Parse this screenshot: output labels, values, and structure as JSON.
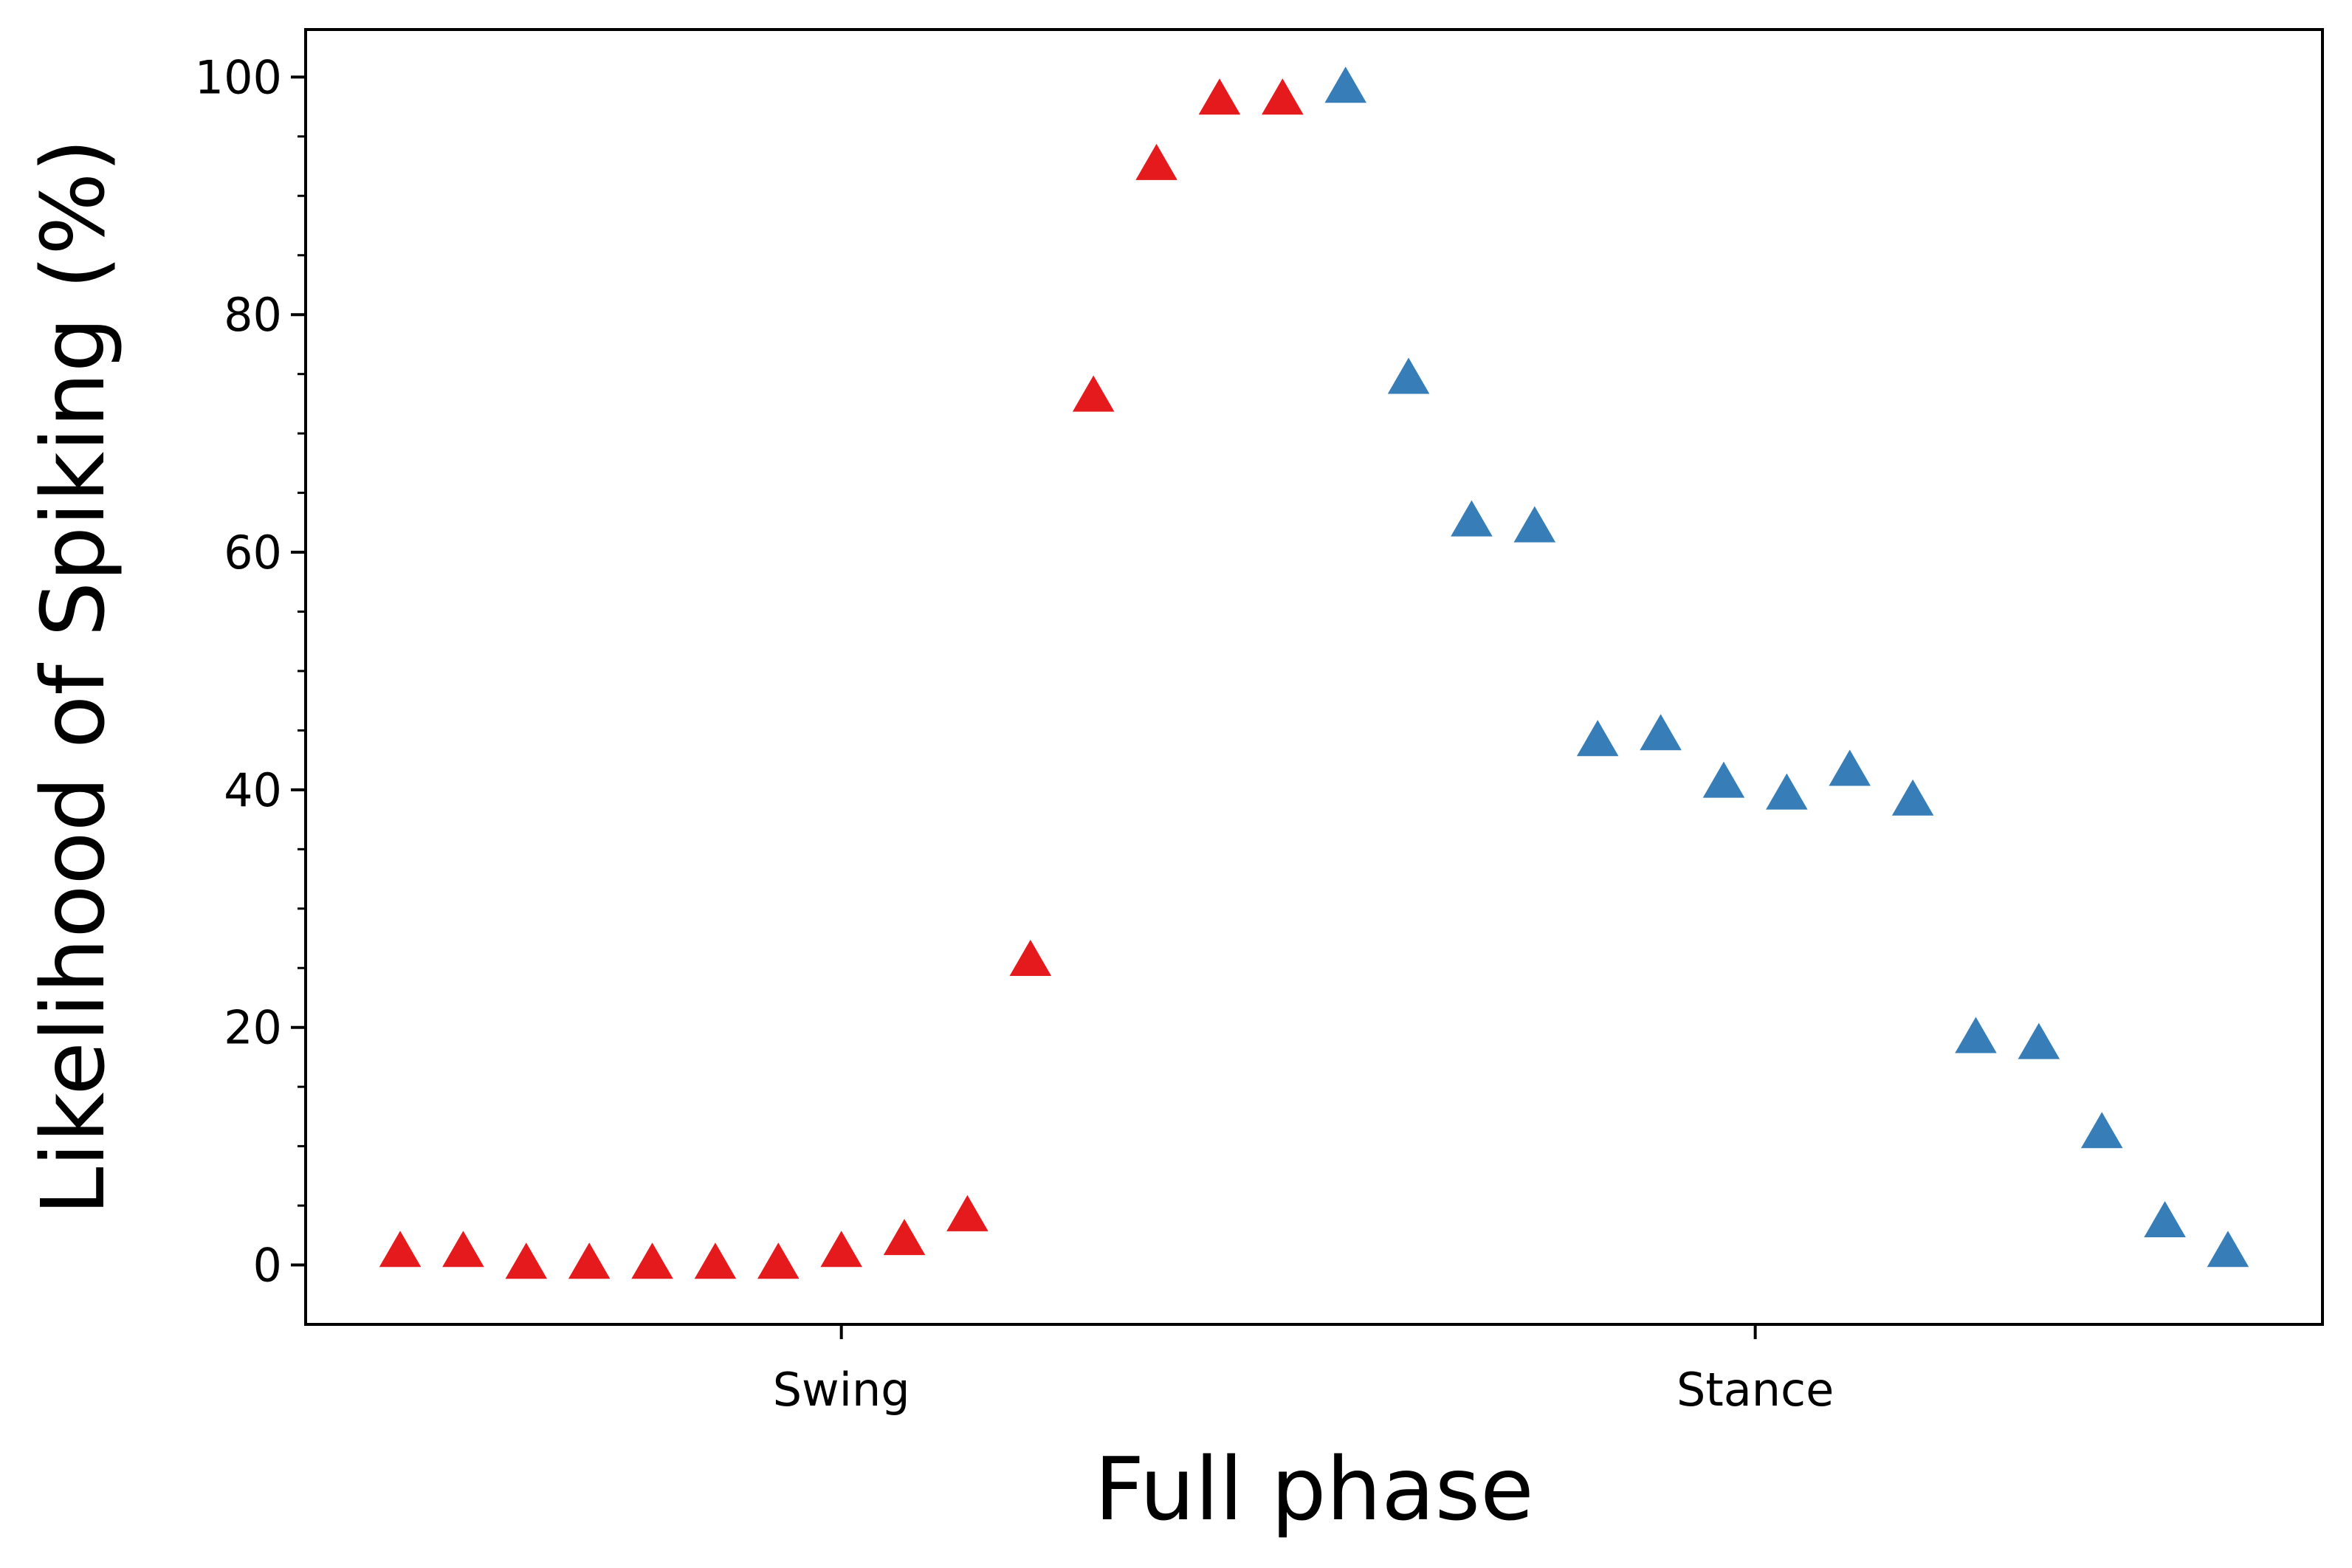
{
  "chart_data": {
    "type": "scatter",
    "xlabel": "Full phase",
    "ylabel": "Likelihood of Spiking (%)",
    "x_categories": [
      "Swing",
      "Stance"
    ],
    "ylim": [
      -5,
      104
    ],
    "y_ticks": [
      0,
      20,
      40,
      60,
      80,
      100
    ],
    "y_minor_step": 5,
    "grid": false,
    "marker": "triangle-up",
    "series": [
      {
        "color": "#e41a1c",
        "x": [
          1,
          2,
          3,
          4,
          5,
          6,
          7,
          8,
          9,
          10,
          11,
          12,
          13,
          14,
          15
        ],
        "values": [
          1,
          1,
          0,
          0,
          0,
          0,
          0,
          1,
          2,
          4,
          25.5,
          73,
          92.5,
          98,
          98
        ]
      },
      {
        "color": "#377eb8",
        "x": [
          16,
          17,
          18,
          19,
          20,
          21,
          22,
          23,
          24,
          25,
          26,
          27,
          28,
          29,
          30
        ],
        "values": [
          99,
          74.5,
          62.5,
          62,
          44,
          44.5,
          40.5,
          39.5,
          41.5,
          39,
          19,
          18.5,
          11,
          3.5,
          1
        ]
      }
    ],
    "x_category_positions": [
      8.0,
      22.5
    ],
    "xlim": [
      -0.5,
      31.5
    ]
  }
}
